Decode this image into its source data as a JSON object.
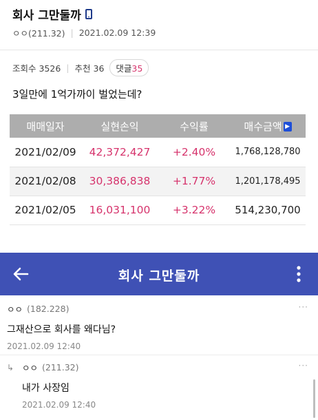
{
  "post": {
    "title": "회사 그만둘까",
    "author": "ㅇㅇ(211.32)",
    "datetime": "2021.02.09 12:39",
    "views_label": "조회수 3526",
    "recommend_label": "추천 36",
    "comments_label": "댓글",
    "comments_count": "35",
    "body": "3일만에 1억가까이 벌었는데?"
  },
  "table": {
    "headers": [
      "매매일자",
      "실현손익",
      "수익률",
      "매수금액"
    ],
    "rows": [
      {
        "date": "2021/02/09",
        "profit": "42,372,427",
        "rate": "+2.40%",
        "amount": "1,768,128,780"
      },
      {
        "date": "2021/02/08",
        "profit": "30,386,838",
        "rate": "+1.77%",
        "amount": "1,201,178,495"
      },
      {
        "date": "2021/02/05",
        "profit": "16,031,100",
        "rate": "+3.22%",
        "amount": "514,230,700"
      }
    ]
  },
  "appbar": {
    "title": "회사 그만둘까",
    "color": "#3f51b5"
  },
  "comments": [
    {
      "author": "ㅇㅇ",
      "ip": "(182.228)",
      "text": "그재산으로 회사를 왜다님?",
      "time": "2021.02.09 12:40",
      "more": "···"
    },
    {
      "author": "ㅇㅇ",
      "ip": "(211.32)",
      "text": "내가 사장임",
      "time": "2021.02.09 12:40",
      "more": "···"
    }
  ],
  "colors": {
    "profit_red": "#d6336c",
    "header_gray": "#adadad"
  },
  "icons": {
    "phone": "phone-icon",
    "back": "back-arrow-icon",
    "more": "more-vertical-icon",
    "reply": "reply-arrow-icon",
    "header_next": "chevron-right-icon"
  }
}
